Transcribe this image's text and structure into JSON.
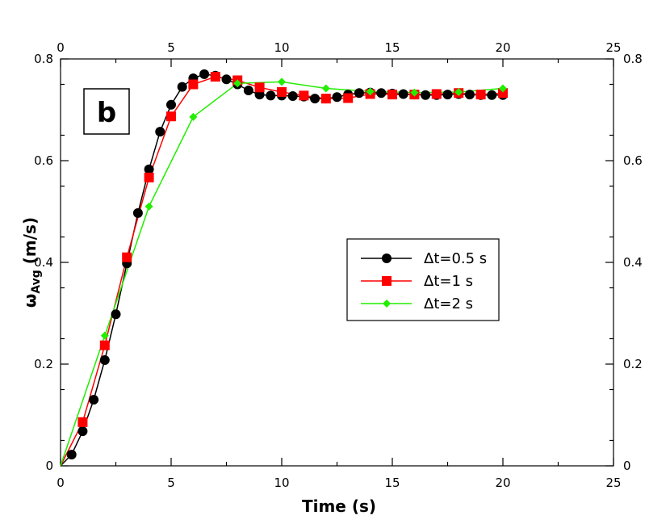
{
  "chart_data": {
    "type": "line",
    "panel_label": "b",
    "xlabel": "Time (s)",
    "ylabel_main": "ω",
    "ylabel_sub": "Avg",
    "ylabel_unit": " (m/s)",
    "xlim": [
      0,
      25
    ],
    "ylim": [
      0,
      0.8
    ],
    "x_ticks": [
      "0",
      "5",
      "10",
      "15",
      "20",
      "25"
    ],
    "y_ticks": [
      "0",
      "0.2",
      "0.4",
      "0.6",
      "0.8"
    ],
    "grid": false,
    "legend_position": "center-right",
    "series": [
      {
        "name": "Δt=0.5 s",
        "color": "#000000",
        "marker": "circle",
        "x": [
          0,
          0.5,
          1,
          1.5,
          2,
          2.5,
          3,
          3.5,
          4,
          4.5,
          5,
          5.5,
          6,
          6.5,
          7,
          7.5,
          8,
          8.5,
          9,
          9.5,
          10,
          10.5,
          11,
          11.5,
          12,
          12.5,
          13,
          13.5,
          14,
          14.5,
          15,
          15.5,
          16,
          16.5,
          17,
          17.5,
          18,
          18.5,
          19,
          19.5,
          20
        ],
        "values": [
          0,
          0.022,
          0.068,
          0.13,
          0.208,
          0.298,
          0.398,
          0.497,
          0.583,
          0.657,
          0.71,
          0.745,
          0.762,
          0.77,
          0.767,
          0.76,
          0.75,
          0.738,
          0.73,
          0.728,
          0.728,
          0.727,
          0.726,
          0.722,
          0.722,
          0.725,
          0.73,
          0.733,
          0.734,
          0.733,
          0.732,
          0.731,
          0.73,
          0.729,
          0.729,
          0.73,
          0.731,
          0.73,
          0.729,
          0.729,
          0.729
        ]
      },
      {
        "name": "Δt=1 s",
        "color": "#ff0000",
        "marker": "square",
        "x": [
          0,
          1,
          2,
          3,
          4,
          5,
          6,
          7,
          8,
          9,
          10,
          11,
          12,
          13,
          14,
          15,
          16,
          17,
          18,
          19,
          20
        ],
        "values": [
          0,
          0.086,
          0.237,
          0.41,
          0.567,
          0.687,
          0.75,
          0.765,
          0.758,
          0.744,
          0.735,
          0.728,
          0.722,
          0.723,
          0.731,
          0.73,
          0.73,
          0.731,
          0.733,
          0.73,
          0.733
        ]
      },
      {
        "name": "Δt=2 s",
        "color": "#22ee00",
        "marker": "diamond",
        "x": [
          0,
          2,
          4,
          6,
          8,
          10,
          12,
          14,
          16,
          18,
          20
        ],
        "values": [
          0,
          0.256,
          0.51,
          0.686,
          0.752,
          0.755,
          0.742,
          0.736,
          0.734,
          0.735,
          0.742
        ]
      }
    ]
  }
}
